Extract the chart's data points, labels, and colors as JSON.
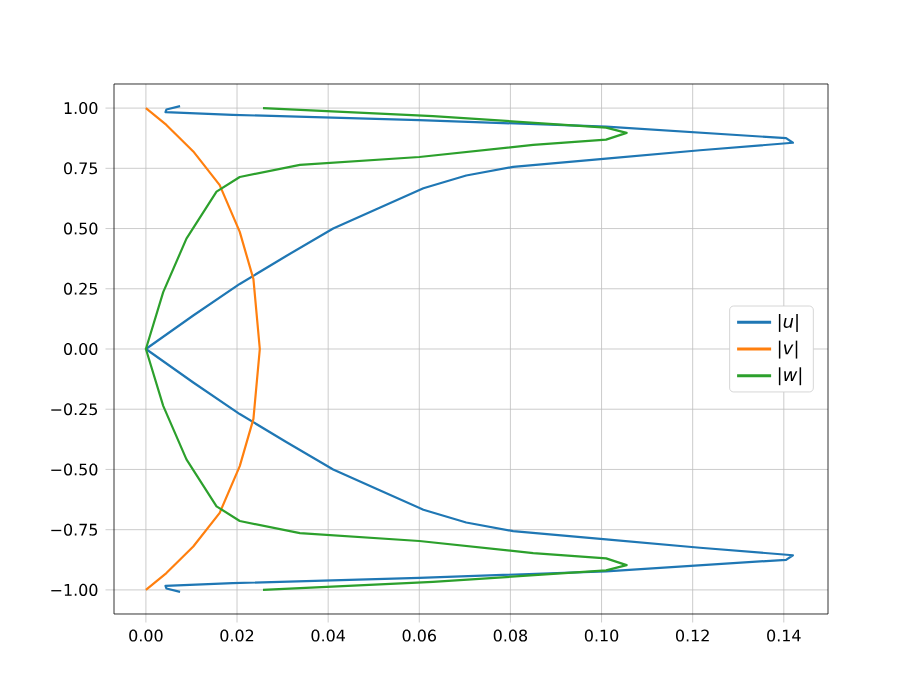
{
  "chart_data": {
    "type": "line",
    "legend": "center right",
    "grid": true,
    "marker": "none",
    "line_style": "solid",
    "xlim": [
      -0.007,
      0.1497
    ],
    "ylim": [
      -1.1,
      1.1
    ],
    "xticks": [
      {
        "value": 0,
        "label": "0.00"
      },
      {
        "value": 0.02,
        "label": "0.02"
      },
      {
        "value": 0.04,
        "label": "0.04"
      },
      {
        "value": 0.06,
        "label": "0.06"
      },
      {
        "value": 0.08,
        "label": "0.08"
      },
      {
        "value": 0.1,
        "label": "0.10"
      },
      {
        "value": 0.12,
        "label": "0.12"
      },
      {
        "value": 0.14,
        "label": "0.14"
      }
    ],
    "yticks": [
      {
        "value": -1,
        "label": "−1.00"
      },
      {
        "value": -0.75,
        "label": "−0.75"
      },
      {
        "value": -0.5,
        "label": "−0.50"
      },
      {
        "value": -0.25,
        "label": "−0.25"
      },
      {
        "value": 0,
        "label": "0.00"
      },
      {
        "value": 0.25,
        "label": "0.25"
      },
      {
        "value": 0.5,
        "label": "0.50"
      },
      {
        "value": 0.75,
        "label": "0.75"
      },
      {
        "value": 1,
        "label": "1.00"
      }
    ],
    "series": [
      {
        "name": "|*u*|",
        "color": "#1f77b4",
        "x": [
          0.0075,
          0.0045,
          0.0043,
          0.019,
          0.06,
          0.101,
          0.1405,
          0.142,
          0.1216,
          0.101,
          0.0806,
          0.0703,
          0.0609,
          0.0513,
          0.0411,
          0.0308,
          0.0206,
          0.0104,
          0,
          0.0104,
          0.0206,
          0.0308,
          0.0411,
          0.0513,
          0.0609,
          0.0703,
          0.0806,
          0.101,
          0.1216,
          0.142,
          0.1405,
          0.101,
          0.06,
          0.019,
          0.0043,
          0.0045,
          0.0075
        ],
        "values": [
          1.008,
          0.994,
          0.983,
          0.972,
          0.95,
          0.923,
          0.875,
          0.856,
          0.825,
          0.79,
          0.756,
          0.72,
          0.667,
          0.586,
          0.5,
          0.386,
          0.27,
          0.139,
          0,
          -0.139,
          -0.27,
          -0.386,
          -0.5,
          -0.586,
          -0.667,
          -0.72,
          -0.756,
          -0.79,
          -0.825,
          -0.856,
          -0.875,
          -0.923,
          -0.95,
          -0.972,
          -0.983,
          -0.994,
          -1.008
        ]
      },
      {
        "name": "|*v*|",
        "color": "#ff7f0e",
        "x": [
          0,
          0.0045,
          0.0104,
          0.0162,
          0.0206,
          0.0236,
          0.025,
          0.0236,
          0.0206,
          0.0162,
          0.0104,
          0.0045,
          0
        ],
        "values": [
          1.0,
          0.93,
          0.82,
          0.68,
          0.486,
          0.29,
          0,
          -0.29,
          -0.486,
          -0.68,
          -0.82,
          -0.93,
          -1.0
        ]
      },
      {
        "name": "|*w*|",
        "color": "#2ca02c",
        "x": [
          0.0257,
          0.063,
          0.101,
          0.1055,
          0.101,
          0.085,
          0.06,
          0.0338,
          0.0206,
          0.0155,
          0.0089,
          0.0038,
          0,
          0.0038,
          0.0089,
          0.0155,
          0.0206,
          0.0338,
          0.06,
          0.085,
          0.101,
          0.1055,
          0.101,
          0.063,
          0.0257
        ],
        "values": [
          1.0,
          0.967,
          0.919,
          0.897,
          0.869,
          0.847,
          0.797,
          0.764,
          0.714,
          0.653,
          0.458,
          0.236,
          0,
          -0.236,
          -0.458,
          -0.653,
          -0.714,
          -0.764,
          -0.797,
          -0.847,
          -0.869,
          -0.897,
          -0.919,
          -0.967,
          -1.0
        ]
      }
    ]
  }
}
